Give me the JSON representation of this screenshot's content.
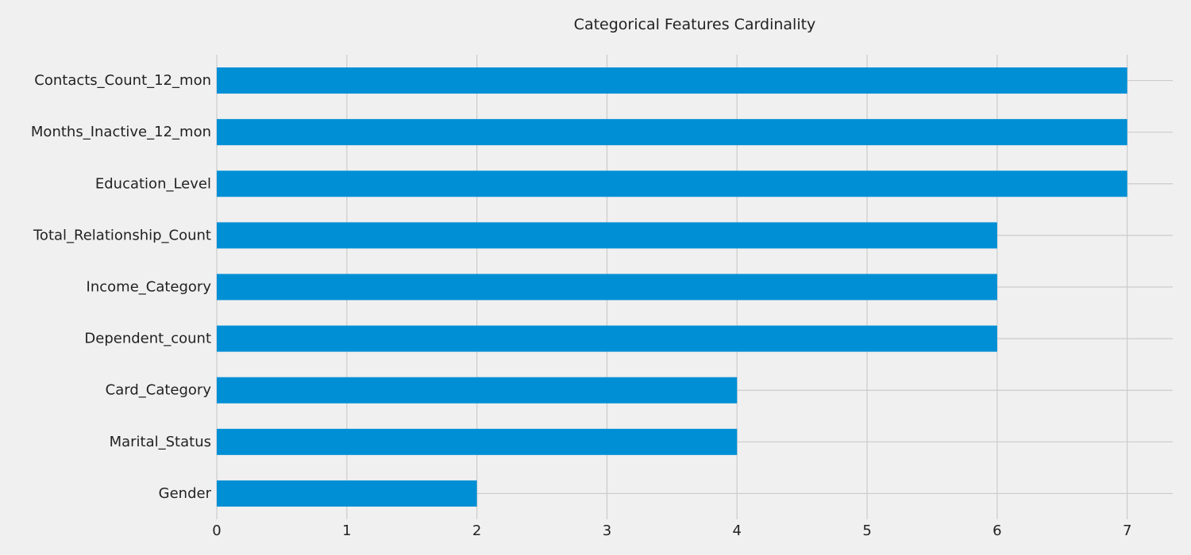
{
  "chart_data": {
    "type": "bar",
    "orientation": "horizontal",
    "title": "Categorical Features Cardinality",
    "xlabel": "",
    "ylabel": "",
    "categories": [
      "Gender",
      "Marital_Status",
      "Card_Category",
      "Dependent_count",
      "Income_Category",
      "Total_Relationship_Count",
      "Education_Level",
      "Months_Inactive_12_mon",
      "Contacts_Count_12_mon"
    ],
    "values": [
      2,
      4,
      4,
      6,
      6,
      6,
      7,
      7,
      7
    ],
    "xlim": [
      0,
      7.35
    ],
    "xticks": [
      0,
      1,
      2,
      3,
      4,
      5,
      6,
      7
    ],
    "grid": true,
    "legend": "none",
    "colors": {
      "bar": "#008fd5",
      "background": "#f0f0f0",
      "grid": "#cbcbcb",
      "text": "#222222"
    }
  }
}
